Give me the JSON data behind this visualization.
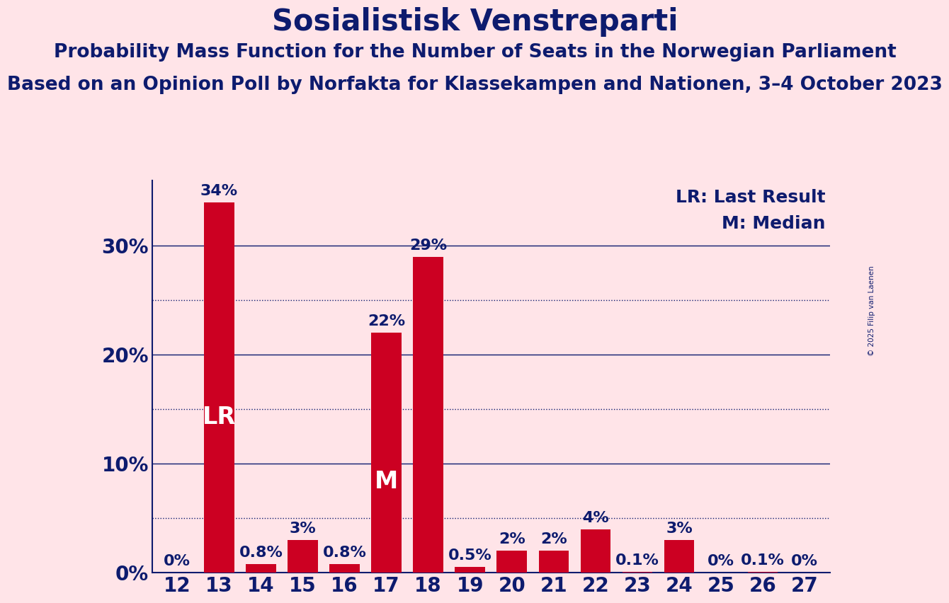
{
  "title": "Sosialistisk Venstreparti",
  "subtitle1": "Probability Mass Function for the Number of Seats in the Norwegian Parliament",
  "subtitle2": "Based on an Opinion Poll by Norfakta for Klassekampen and Nationen, 3–4 October 2023",
  "copyright": "© 2025 Filip van Laenen",
  "categories": [
    12,
    13,
    14,
    15,
    16,
    17,
    18,
    19,
    20,
    21,
    22,
    23,
    24,
    25,
    26,
    27
  ],
  "values": [
    0.0,
    34.0,
    0.8,
    3.0,
    0.8,
    22.0,
    29.0,
    0.5,
    2.0,
    2.0,
    4.0,
    0.1,
    3.0,
    0.0,
    0.1,
    0.0
  ],
  "labels": [
    "0%",
    "34%",
    "0.8%",
    "3%",
    "0.8%",
    "22%",
    "29%",
    "0.5%",
    "2%",
    "2%",
    "4%",
    "0.1%",
    "3%",
    "0%",
    "0.1%",
    "0%"
  ],
  "bar_color": "#CC0022",
  "background_color": "#FFE4E8",
  "text_color": "#0D1B6E",
  "bar_label_color_dark": "#0D1B6E",
  "bar_label_color_light": "#FFFFFF",
  "lr_bar_index": 1,
  "median_bar_index": 5,
  "lr_label": "LR",
  "median_label": "M",
  "legend_lr": "LR: Last Result",
  "legend_m": "M: Median",
  "ylim": [
    0,
    36
  ],
  "yticks": [
    0,
    10,
    20,
    30
  ],
  "ytick_labels": [
    "0%",
    "10%",
    "20%",
    "30%"
  ],
  "solid_grid_lines": [
    10,
    20,
    30
  ],
  "dotted_grid_lines": [
    5,
    15,
    25
  ],
  "title_fontsize": 30,
  "subtitle1_fontsize": 19,
  "subtitle2_fontsize": 19,
  "axis_label_fontsize": 20,
  "bar_label_fontsize": 16,
  "legend_fontsize": 18,
  "inner_label_fontsize": 24
}
